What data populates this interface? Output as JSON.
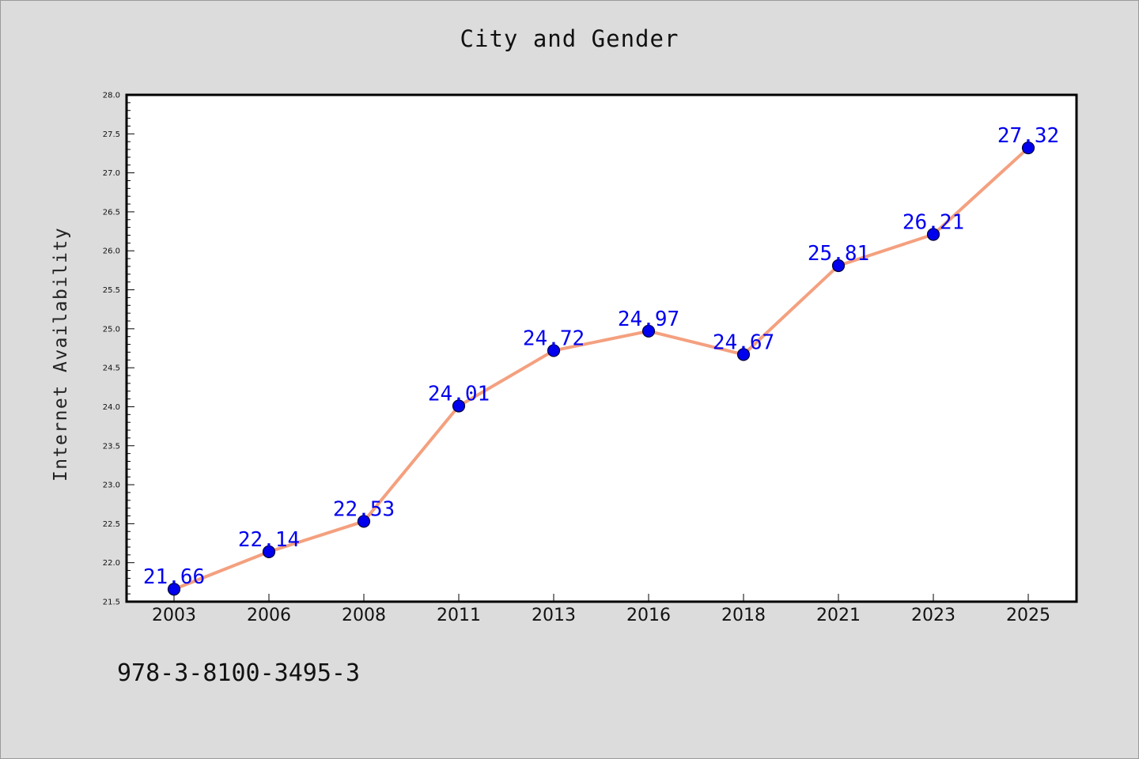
{
  "chart_data": {
    "type": "line",
    "title": "City and Gender",
    "xlabel": "",
    "ylabel": "Internet Availability",
    "categories": [
      "2003",
      "2006",
      "2008",
      "2011",
      "2013",
      "2016",
      "2018",
      "2021",
      "2023",
      "2025"
    ],
    "series": [
      {
        "values": [
          21.66,
          22.14,
          22.53,
          24.01,
          24.72,
          24.97,
          24.67,
          25.81,
          26.21,
          27.32
        ],
        "line_color": "#f4a07f",
        "marker_color": "#0000ee"
      }
    ],
    "ylim": [
      21.5,
      28.0
    ],
    "yticks": [
      "21.5",
      "22.0",
      "22.5",
      "23.0",
      "23.5",
      "24.0",
      "24.5",
      "25.0",
      "25.5",
      "26.0",
      "26.5",
      "27.0",
      "27.5",
      "28.0"
    ],
    "data_labels": [
      "21.66",
      "22.14",
      "22.53",
      "24.01",
      "24.72",
      "24.97",
      "24.67",
      "25.81",
      "26.21",
      "27.32"
    ],
    "grid": false,
    "legend": false
  },
  "footer": {
    "code": "978-3-8100-3495-3"
  }
}
